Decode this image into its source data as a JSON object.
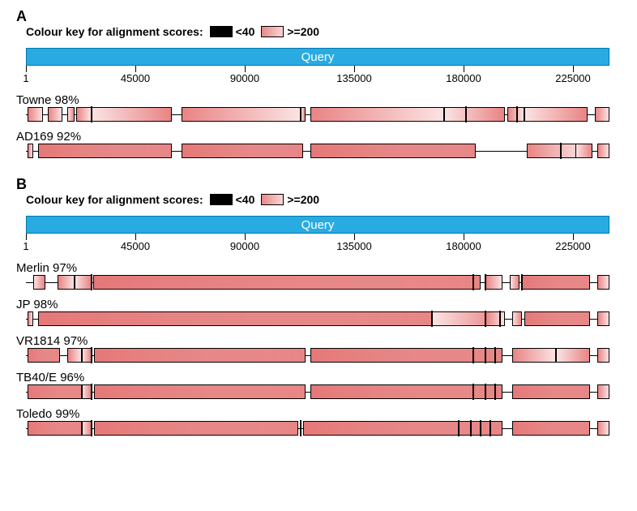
{
  "axis": {
    "max": 240000,
    "ticks": [
      1,
      45000,
      90000,
      135000,
      180000,
      225000
    ],
    "label_fontsize": 13
  },
  "query_bar": {
    "label": "Query",
    "color": "#29abe2",
    "border_color": "#0077aa",
    "text_color": "#ffffff"
  },
  "colors": {
    "seg_dark": "#e98484",
    "seg_light": "#fbe3e3",
    "seg_border": "#000000",
    "baseline": "#000000",
    "background": "#ffffff"
  },
  "legend": {
    "prefix": "Colour key for alignment scores:",
    "items": [
      {
        "label": "<40",
        "swatch": "black"
      },
      {
        "label": ">=200",
        "swatch": "pink"
      }
    ]
  },
  "panels": [
    {
      "letter": "A",
      "tracks": [
        {
          "label": "Towne 98%",
          "baseline": [
            0,
            240000
          ],
          "segments": [
            [
              500,
              7000,
              "r"
            ],
            [
              9000,
              15000,
              "r"
            ],
            [
              17000,
              20000,
              "l"
            ],
            [
              20500,
              27000,
              "r"
            ],
            [
              27000,
              60000,
              "l"
            ],
            [
              64000,
              113000,
              "r"
            ],
            [
              113000,
              115000,
              "l"
            ],
            [
              117000,
              172000,
              "r"
            ],
            [
              172000,
              197000,
              "l"
            ],
            [
              198000,
              205000,
              "r"
            ],
            [
              205000,
              231000,
              "l"
            ],
            [
              234000,
              240000,
              "r"
            ]
          ],
          "vlines": [
            27000,
            181000,
            202000
          ]
        },
        {
          "label": "AD169 92%",
          "baseline": [
            0,
            240000
          ],
          "segments": [
            [
              500,
              3000,
              "r"
            ],
            [
              5000,
              60000,
              "r"
            ],
            [
              5000,
              60000,
              "l2"
            ],
            [
              64000,
              114000,
              "r"
            ],
            [
              64000,
              114000,
              "l2"
            ],
            [
              117000,
              185000,
              "r"
            ],
            [
              117000,
              185000,
              "l2"
            ],
            [
              206000,
              230000,
              "r"
            ],
            [
              226000,
              233000,
              "l"
            ],
            [
              235000,
              240000,
              "r"
            ]
          ],
          "vlines": [
            220000
          ]
        }
      ]
    },
    {
      "letter": "B",
      "tracks": [
        {
          "label": "Merlin 97%",
          "baseline": [
            0,
            240000
          ],
          "segments": [
            [
              3000,
              8000,
              "l"
            ],
            [
              13000,
              20000,
              "r"
            ],
            [
              20000,
              27000,
              "l"
            ],
            [
              27500,
              187000,
              "r"
            ],
            [
              27500,
              187000,
              "l2"
            ],
            [
              189000,
              196000,
              "r"
            ],
            [
              199000,
              203000,
              "l"
            ],
            [
              204000,
              232000,
              "r"
            ],
            [
              204000,
              232000,
              "l2"
            ],
            [
              235000,
              240000,
              "r"
            ]
          ],
          "vlines": [
            27000,
            184000,
            189000,
            204000
          ]
        },
        {
          "label": "JP 98%",
          "baseline": [
            0,
            240000
          ],
          "segments": [
            [
              500,
              3000,
              "r"
            ],
            [
              5000,
              167000,
              "r"
            ],
            [
              5000,
              167000,
              "l2"
            ],
            [
              167000,
              195000,
              "l"
            ],
            [
              189000,
              197000,
              "r"
            ],
            [
              200000,
              204000,
              "l"
            ],
            [
              205000,
              232000,
              "r"
            ],
            [
              205000,
              232000,
              "l2"
            ],
            [
              235000,
              240000,
              "r"
            ]
          ],
          "vlines": [
            167000,
            189000,
            195000
          ]
        },
        {
          "label": "VR1814 97%",
          "baseline": [
            0,
            240000
          ],
          "segments": [
            [
              500,
              14000,
              "r"
            ],
            [
              500,
              14000,
              "l2"
            ],
            [
              17000,
              23000,
              "r"
            ],
            [
              23000,
              27000,
              "l"
            ],
            [
              28000,
              115000,
              "r"
            ],
            [
              28000,
              115000,
              "l2"
            ],
            [
              117000,
              196000,
              "r"
            ],
            [
              117000,
              196000,
              "l2"
            ],
            [
              200000,
              218000,
              "r"
            ],
            [
              218000,
              232000,
              "l"
            ],
            [
              235000,
              240000,
              "r"
            ]
          ],
          "vlines": [
            27000,
            184000,
            189000,
            193000
          ]
        },
        {
          "label": "TB40/E 96%",
          "baseline": [
            0,
            240000
          ],
          "segments": [
            [
              500,
              23000,
              "r"
            ],
            [
              500,
              23000,
              "l2"
            ],
            [
              23000,
              27000,
              "l"
            ],
            [
              28000,
              115000,
              "r"
            ],
            [
              28000,
              115000,
              "l2"
            ],
            [
              117000,
              196000,
              "r"
            ],
            [
              117000,
              196000,
              "l2"
            ],
            [
              200000,
              232000,
              "r"
            ],
            [
              200000,
              232000,
              "l2"
            ],
            [
              235000,
              240000,
              "r"
            ]
          ],
          "vlines": [
            27000,
            184000,
            189000,
            193000
          ]
        },
        {
          "label": "Toledo 99%",
          "baseline": [
            0,
            240000
          ],
          "segments": [
            [
              500,
              23000,
              "r"
            ],
            [
              500,
              23000,
              "l2"
            ],
            [
              23000,
              27000,
              "l"
            ],
            [
              28000,
              112000,
              "r"
            ],
            [
              28000,
              112000,
              "l2"
            ],
            [
              114000,
              196000,
              "r"
            ],
            [
              114000,
              196000,
              "l2"
            ],
            [
              200000,
              232000,
              "r"
            ],
            [
              200000,
              232000,
              "l2"
            ],
            [
              235000,
              240000,
              "r"
            ]
          ],
          "vlines": [
            27000,
            113000,
            178000,
            183000,
            187000,
            191000
          ]
        }
      ]
    }
  ]
}
